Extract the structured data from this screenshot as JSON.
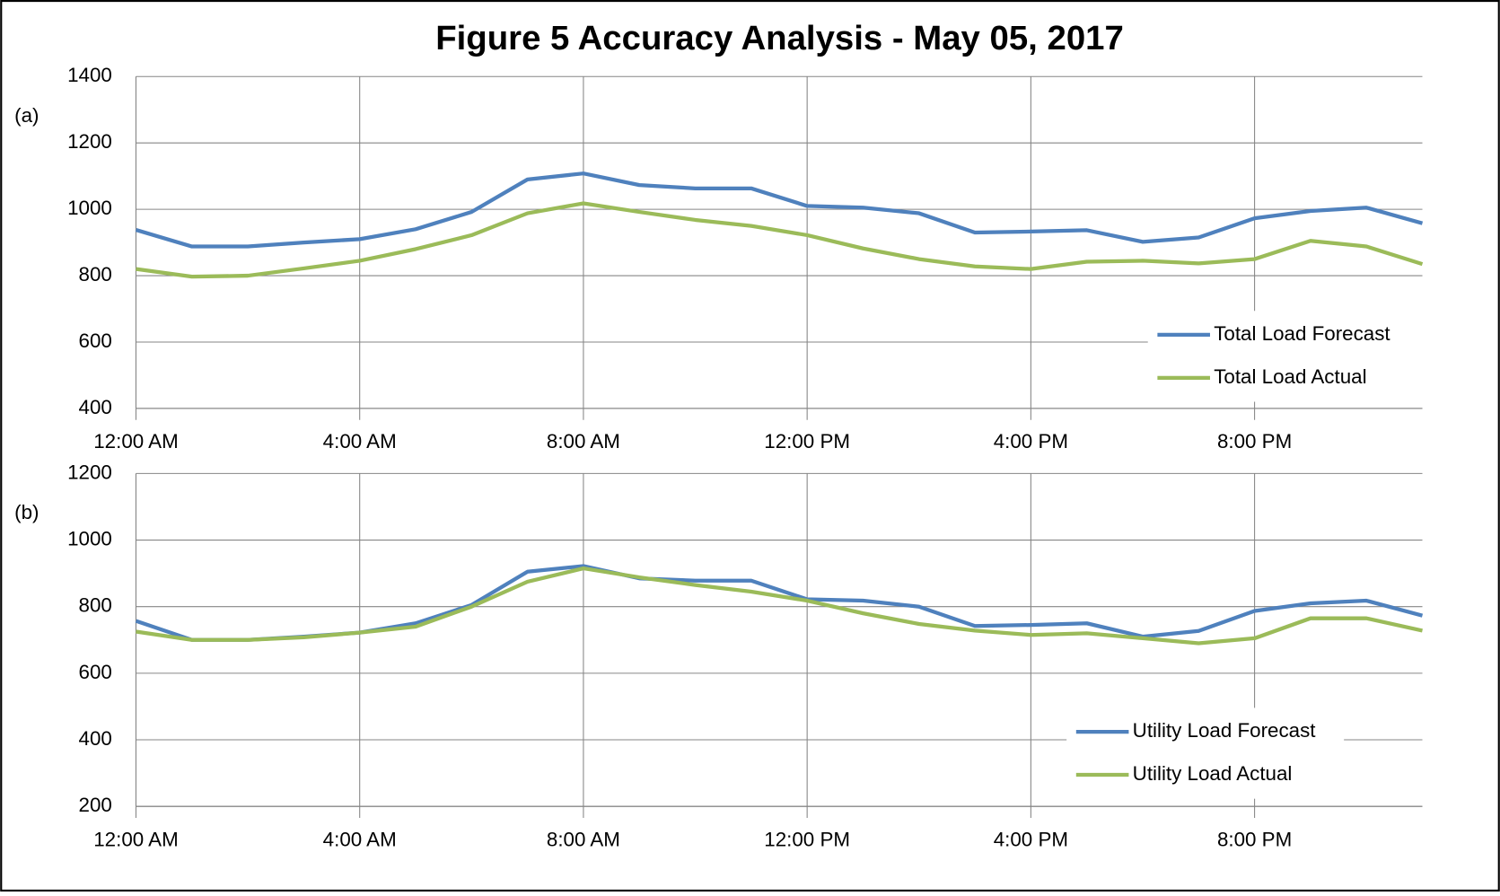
{
  "title": "Figure 5 Accuracy Analysis - May 05, 2017",
  "chart_data": [
    {
      "type": "line",
      "label": "(a)",
      "x": [
        0,
        1,
        2,
        3,
        4,
        5,
        6,
        7,
        8,
        9,
        10,
        11,
        12,
        13,
        14,
        15,
        16,
        17,
        18,
        19,
        20,
        21,
        22,
        23
      ],
      "series": [
        {
          "name": "Total Load Forecast",
          "color": "#4f81bd",
          "values": [
            938,
            888,
            888,
            900,
            910,
            940,
            992,
            1090,
            1108,
            1073,
            1063,
            1063,
            1010,
            1005,
            988,
            930,
            933,
            937,
            902,
            915,
            973,
            995,
            1005,
            958
          ]
        },
        {
          "name": "Total Load Actual",
          "color": "#9bbb59",
          "values": [
            820,
            797,
            800,
            822,
            845,
            880,
            922,
            988,
            1018,
            992,
            968,
            950,
            922,
            882,
            850,
            828,
            820,
            842,
            845,
            837,
            850,
            905,
            888,
            835
          ]
        }
      ],
      "xlim": [
        0,
        23
      ],
      "xticks": [
        {
          "value": 0,
          "label": "12:00 AM"
        },
        {
          "value": 4,
          "label": "4:00 AM"
        },
        {
          "value": 8,
          "label": "8:00 AM"
        },
        {
          "value": 12,
          "label": "12:00 PM"
        },
        {
          "value": 16,
          "label": "4:00 PM"
        },
        {
          "value": 20,
          "label": "8:00 PM"
        }
      ],
      "ylim": [
        400,
        1400
      ],
      "yticks": [
        400,
        600,
        800,
        1000,
        1200,
        1400
      ],
      "grid": true,
      "legend": "lower right"
    },
    {
      "type": "line",
      "label": "(b)",
      "x": [
        0,
        1,
        2,
        3,
        4,
        5,
        6,
        7,
        8,
        9,
        10,
        11,
        12,
        13,
        14,
        15,
        16,
        17,
        18,
        19,
        20,
        21,
        22,
        23
      ],
      "series": [
        {
          "name": "Utility Load Forecast",
          "color": "#4f81bd",
          "values": [
            757,
            700,
            700,
            710,
            722,
            750,
            805,
            905,
            922,
            885,
            878,
            878,
            822,
            818,
            800,
            742,
            745,
            750,
            710,
            727,
            787,
            810,
            818,
            773
          ]
        },
        {
          "name": "Utility Load Actual",
          "color": "#9bbb59",
          "values": [
            725,
            700,
            700,
            708,
            722,
            740,
            800,
            875,
            915,
            888,
            865,
            845,
            818,
            780,
            748,
            728,
            715,
            720,
            705,
            690,
            705,
            765,
            765,
            728
          ]
        }
      ],
      "xlim": [
        0,
        23
      ],
      "xticks": [
        {
          "value": 0,
          "label": "12:00 AM"
        },
        {
          "value": 4,
          "label": "4:00 AM"
        },
        {
          "value": 8,
          "label": "8:00 AM"
        },
        {
          "value": 12,
          "label": "12:00 PM"
        },
        {
          "value": 16,
          "label": "4:00 PM"
        },
        {
          "value": 20,
          "label": "8:00 PM"
        }
      ],
      "ylim": [
        200,
        1200
      ],
      "yticks": [
        200,
        400,
        600,
        800,
        1000,
        1200
      ],
      "grid": true,
      "legend": "lower right"
    }
  ]
}
